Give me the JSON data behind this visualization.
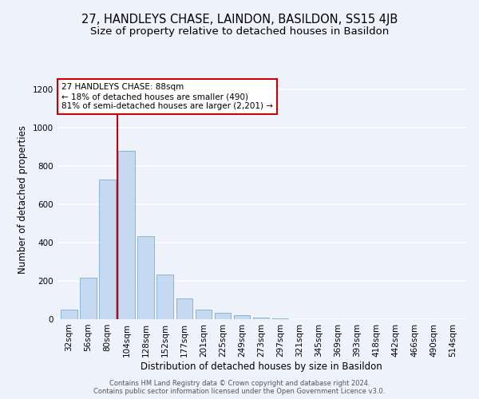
{
  "title": "27, HANDLEYS CHASE, LAINDON, BASILDON, SS15 4JB",
  "subtitle": "Size of property relative to detached houses in Basildon",
  "xlabel": "Distribution of detached houses by size in Basildon",
  "ylabel": "Number of detached properties",
  "bar_categories": [
    "32sqm",
    "56sqm",
    "80sqm",
    "104sqm",
    "128sqm",
    "152sqm",
    "177sqm",
    "201sqm",
    "225sqm",
    "249sqm",
    "273sqm",
    "297sqm",
    "321sqm",
    "345sqm",
    "369sqm",
    "393sqm",
    "418sqm",
    "442sqm",
    "466sqm",
    "490sqm",
    "514sqm"
  ],
  "bar_values": [
    50,
    215,
    730,
    880,
    435,
    235,
    110,
    48,
    35,
    22,
    10,
    5,
    0,
    0,
    0,
    0,
    0,
    0,
    0,
    0,
    0
  ],
  "bar_color": "#c5d9f1",
  "bar_edgecolor": "#7bafd4",
  "vline_index": 2.5,
  "vline_color": "#cc0000",
  "annotation_text": "27 HANDLEYS CHASE: 88sqm\n← 18% of detached houses are smaller (490)\n81% of semi-detached houses are larger (2,201) →",
  "annotation_box_color": "#ffffff",
  "annotation_box_edgecolor": "#cc0000",
  "ylim": [
    0,
    1250
  ],
  "yticks": [
    0,
    200,
    400,
    600,
    800,
    1000,
    1200
  ],
  "fig_bg": "#eef2fb",
  "plot_bg": "#eef2fb",
  "grid_color": "#ffffff",
  "footnote": "Contains HM Land Registry data © Crown copyright and database right 2024.\nContains public sector information licensed under the Open Government Licence v3.0.",
  "title_fontsize": 10.5,
  "subtitle_fontsize": 9.5,
  "ylabel_fontsize": 8.5,
  "xlabel_fontsize": 8.5,
  "tick_fontsize": 7.5,
  "annotation_fontsize": 7.5,
  "footnote_fontsize": 6.0
}
